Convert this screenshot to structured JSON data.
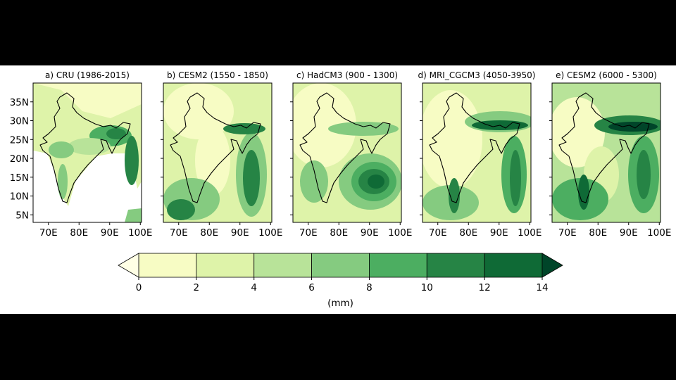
{
  "chart_data": {
    "type": "map-panels",
    "panels": [
      {
        "title": "a) CRU (1986-2015)"
      },
      {
        "title": "b) CESM2 (1550 - 1850)"
      },
      {
        "title": "c) HadCM3 (900 - 1300)"
      },
      {
        "title": "d) MRI_CGCM3 (4050-3950)"
      },
      {
        "title": "e) CESM2 (6000 - 5300)"
      }
    ],
    "xlim": [
      65,
      100.4
    ],
    "ylim": [
      3,
      40
    ],
    "xticks": [
      {
        "value": 70,
        "label": "70E"
      },
      {
        "value": 80,
        "label": "80E"
      },
      {
        "value": 90,
        "label": "90E"
      },
      {
        "value": 100,
        "label": "100E"
      }
    ],
    "yticks": [
      {
        "value": 35,
        "label": "35N"
      },
      {
        "value": 30,
        "label": "30N"
      },
      {
        "value": 25,
        "label": "25N"
      },
      {
        "value": 20,
        "label": "20N"
      },
      {
        "value": 15,
        "label": "15N"
      },
      {
        "value": 10,
        "label": "10N"
      },
      {
        "value": 5,
        "label": "5N"
      }
    ],
    "colorbar": {
      "levels": [
        0,
        2,
        4,
        6,
        8,
        10,
        12,
        14
      ],
      "colors": [
        "#f7fcc4",
        "#def3a9",
        "#b8e399",
        "#85cb80",
        "#4cae61",
        "#268445",
        "#0f6a36"
      ],
      "under_color": "#ffffe5",
      "over_color": "#004529",
      "label": "(mm)"
    }
  }
}
